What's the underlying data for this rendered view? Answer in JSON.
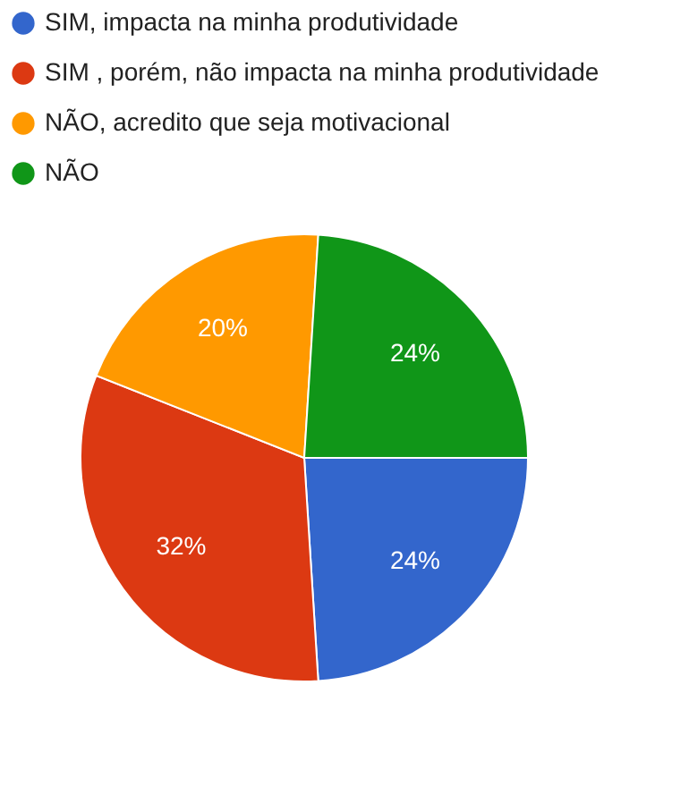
{
  "chart_data": {
    "type": "pie",
    "categories": [
      "SIM, impacta na minha produtividade",
      "SIM , porém, não impacta na minha produtividade",
      "NÃO, acredito que seja motivacional",
      "NÃO"
    ],
    "values": [
      24,
      32,
      20,
      24
    ],
    "colors": [
      "#3366cc",
      "#dc3912",
      "#ff9900",
      "#109618"
    ],
    "value_labels": [
      "24%",
      "32%",
      "20%",
      "24%"
    ],
    "legend": "top left"
  }
}
